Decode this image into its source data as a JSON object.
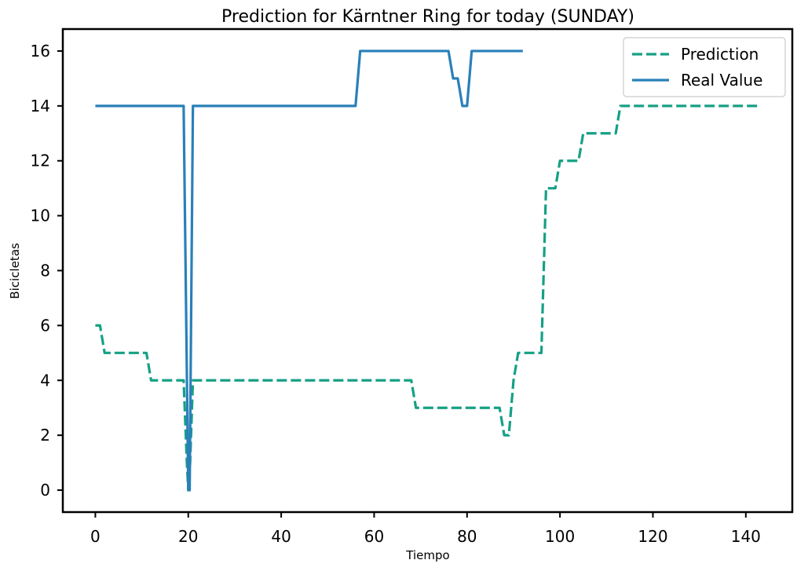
{
  "chart_data": {
    "type": "line",
    "title": "Prediction for Kärntner Ring for today (SUNDAY)",
    "xlabel": "Tiempo",
    "ylabel": "Bicicletas",
    "xlim": [
      -7,
      150
    ],
    "ylim": [
      -0.8,
      16.8
    ],
    "xticks": [
      0,
      20,
      40,
      60,
      80,
      100,
      120,
      140
    ],
    "yticks": [
      0,
      2,
      4,
      6,
      8,
      10,
      12,
      14,
      16
    ],
    "grid": false,
    "legend_position": "top-right",
    "series": [
      {
        "name": "Prediction",
        "style": "dashed",
        "color": "#16a085",
        "points": [
          [
            0,
            6
          ],
          [
            1,
            6
          ],
          [
            2,
            5
          ],
          [
            11,
            5
          ],
          [
            12,
            4
          ],
          [
            19,
            4
          ],
          [
            19.7,
            1
          ],
          [
            20,
            0
          ],
          [
            20.4,
            1
          ],
          [
            21,
            4
          ],
          [
            68,
            4
          ],
          [
            69,
            3
          ],
          [
            87,
            3
          ],
          [
            88,
            2
          ],
          [
            89,
            2
          ],
          [
            90,
            4
          ],
          [
            91,
            5
          ],
          [
            96,
            5
          ],
          [
            97,
            11
          ],
          [
            99,
            11
          ],
          [
            100,
            12
          ],
          [
            104,
            12
          ],
          [
            105,
            13
          ],
          [
            112,
            13
          ],
          [
            113,
            14
          ],
          [
            143,
            14
          ]
        ]
      },
      {
        "name": "Real Value",
        "style": "solid",
        "color": "#2980b9",
        "points": [
          [
            0,
            14
          ],
          [
            19,
            14
          ],
          [
            20,
            0
          ],
          [
            20.3,
            0
          ],
          [
            21,
            14
          ],
          [
            56,
            14
          ],
          [
            57,
            16
          ],
          [
            76,
            16
          ],
          [
            77,
            15
          ],
          [
            78,
            15
          ],
          [
            79,
            14
          ],
          [
            80,
            14
          ],
          [
            81,
            16
          ],
          [
            92,
            16
          ]
        ]
      }
    ]
  }
}
